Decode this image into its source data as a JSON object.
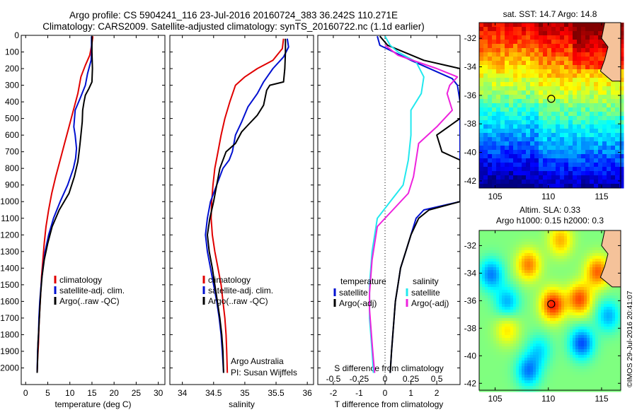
{
  "header": {
    "line1": "Argo profile: CS 5904241_116 23-Jul-2016 20160724_383 36.242S 110.271E",
    "line2": "Climatology: CARS2009. Satellite-adjusted climatology: synTS_20160722.nc (1.1d earlier)"
  },
  "colors": {
    "climatology": "#e00000",
    "satellite": "#0010d0",
    "argo": "#000000",
    "sat_salinity": "#22e8ee",
    "argo_salinity": "#ee22dd"
  },
  "chart_data": [
    {
      "type": "line",
      "name": "temperature",
      "xlabel": "temperature (deg C)",
      "ylabel": "",
      "xlim": [
        -1,
        31.5
      ],
      "ylim": [
        2100,
        0
      ],
      "xticks": [
        "0",
        "5",
        "10",
        "15",
        "20",
        "25",
        "30"
      ],
      "yticks": [
        "0",
        "100",
        "200",
        "300",
        "400",
        "500",
        "600",
        "700",
        "800",
        "900",
        "1000",
        "1100",
        "1200",
        "1300",
        "1400",
        "1500",
        "1600",
        "1700",
        "1800",
        "1900",
        "2000"
      ],
      "legend": [
        "climatology",
        "satellite-adj. clim.",
        "Argo(..raw -QC)"
      ],
      "series": [
        {
          "name": "climatology",
          "color": "#e00000",
          "points": [
            [
              15.2,
              5
            ],
            [
              15.0,
              50
            ],
            [
              14.5,
              120
            ],
            [
              13.5,
              180
            ],
            [
              12.5,
              250
            ],
            [
              11.8,
              350
            ],
            [
              10.8,
              450
            ],
            [
              9.8,
              550
            ],
            [
              8.8,
              650
            ],
            [
              7.8,
              750
            ],
            [
              6.8,
              850
            ],
            [
              5.9,
              950
            ],
            [
              5.2,
              1050
            ],
            [
              4.6,
              1150
            ],
            [
              4.2,
              1250
            ],
            [
              3.9,
              1350
            ],
            [
              3.6,
              1450
            ],
            [
              3.4,
              1550
            ],
            [
              3.2,
              1650
            ],
            [
              3.0,
              1750
            ],
            [
              2.9,
              1850
            ],
            [
              2.7,
              1950
            ],
            [
              2.6,
              2030
            ]
          ]
        },
        {
          "name": "satellite-adj. clim.",
          "color": "#0010d0",
          "points": [
            [
              14.9,
              5
            ],
            [
              14.9,
              100
            ],
            [
              14.8,
              150
            ],
            [
              14.0,
              230
            ],
            [
              13.5,
              300
            ],
            [
              12.3,
              380
            ],
            [
              11.2,
              450
            ],
            [
              10.9,
              550
            ],
            [
              11.2,
              600
            ],
            [
              11.5,
              680
            ],
            [
              11.3,
              740
            ],
            [
              10.8,
              800
            ],
            [
              9.5,
              900
            ],
            [
              7.8,
              1000
            ],
            [
              6.3,
              1100
            ],
            [
              5.2,
              1200
            ],
            [
              4.4,
              1300
            ],
            [
              3.9,
              1400
            ],
            [
              3.5,
              1500
            ],
            [
              3.2,
              1600
            ],
            [
              3.0,
              1700
            ],
            [
              2.9,
              1800
            ],
            [
              2.7,
              1900
            ],
            [
              2.6,
              2030
            ]
          ]
        },
        {
          "name": "Argo(..raw -QC)",
          "color": "#000000",
          "points": [
            [
              15.0,
              5
            ],
            [
              15.0,
              100
            ],
            [
              15.1,
              200
            ],
            [
              15.0,
              280
            ],
            [
              14.3,
              320
            ],
            [
              13.5,
              360
            ],
            [
              13.2,
              400
            ],
            [
              12.9,
              450
            ],
            [
              12.8,
              520
            ],
            [
              12.5,
              600
            ],
            [
              12.3,
              650
            ],
            [
              12.1,
              700
            ],
            [
              11.8,
              760
            ],
            [
              11.0,
              850
            ],
            [
              9.8,
              950
            ],
            [
              7.6,
              1050
            ],
            [
              6.0,
              1150
            ],
            [
              5.0,
              1250
            ],
            [
              4.2,
              1350
            ],
            [
              3.7,
              1450
            ],
            [
              3.4,
              1550
            ],
            [
              3.2,
              1650
            ],
            [
              3.0,
              1750
            ],
            [
              2.8,
              1850
            ],
            [
              2.7,
              1950
            ],
            [
              2.6,
              2030
            ]
          ]
        }
      ]
    },
    {
      "type": "line",
      "name": "salinity",
      "xlabel": "salinity",
      "ylabel": "",
      "xlim": [
        33.8,
        36.1
      ],
      "ylim": [
        2100,
        0
      ],
      "xticks": [
        "34",
        "34.5",
        "35",
        "35.5",
        "36"
      ],
      "legend": [
        "climatology",
        "satellite-adj. clim.",
        "Argo(..raw -QC)"
      ],
      "annotation": [
        "Argo Australia",
        "PI: Susan Wijffels"
      ],
      "series": [
        {
          "name": "climatology",
          "color": "#e00000",
          "points": [
            [
              35.62,
              20
            ],
            [
              35.6,
              80
            ],
            [
              35.45,
              150
            ],
            [
              35.2,
              200
            ],
            [
              35.0,
              250
            ],
            [
              34.85,
              300
            ],
            [
              34.76,
              400
            ],
            [
              34.68,
              500
            ],
            [
              34.62,
              600
            ],
            [
              34.57,
              700
            ],
            [
              34.52,
              800
            ],
            [
              34.49,
              900
            ],
            [
              34.47,
              1000
            ],
            [
              34.46,
              1100
            ],
            [
              34.48,
              1200
            ],
            [
              34.52,
              1300
            ],
            [
              34.57,
              1400
            ],
            [
              34.62,
              1500
            ],
            [
              34.65,
              1600
            ],
            [
              34.68,
              1700
            ],
            [
              34.7,
              1800
            ],
            [
              34.71,
              1900
            ],
            [
              34.72,
              2030
            ]
          ]
        },
        {
          "name": "satellite-adj. clim.",
          "color": "#0010d0",
          "points": [
            [
              35.68,
              20
            ],
            [
              35.7,
              70
            ],
            [
              35.62,
              130
            ],
            [
              35.45,
              200
            ],
            [
              35.3,
              280
            ],
            [
              35.2,
              350
            ],
            [
              35.05,
              430
            ],
            [
              34.95,
              520
            ],
            [
              34.85,
              600
            ],
            [
              34.8,
              700
            ],
            [
              34.75,
              750
            ],
            [
              34.65,
              800
            ],
            [
              34.55,
              900
            ],
            [
              34.45,
              1000
            ],
            [
              34.4,
              1100
            ],
            [
              34.37,
              1200
            ],
            [
              34.4,
              1300
            ],
            [
              34.45,
              1400
            ],
            [
              34.5,
              1500
            ],
            [
              34.55,
              1600
            ],
            [
              34.59,
              1700
            ],
            [
              34.62,
              1800
            ],
            [
              34.64,
              1900
            ],
            [
              34.66,
              2030
            ]
          ]
        },
        {
          "name": "Argo(..raw -QC)",
          "color": "#000000",
          "points": [
            [
              35.65,
              20
            ],
            [
              35.65,
              100
            ],
            [
              35.64,
              200
            ],
            [
              35.62,
              280
            ],
            [
              35.4,
              300
            ],
            [
              35.35,
              330
            ],
            [
              35.3,
              420
            ],
            [
              35.2,
              480
            ],
            [
              35.05,
              540
            ],
            [
              34.95,
              580
            ],
            [
              34.85,
              650
            ],
            [
              34.7,
              700
            ],
            [
              34.6,
              800
            ],
            [
              34.55,
              900
            ],
            [
              34.5,
              1000
            ],
            [
              34.44,
              1100
            ],
            [
              34.4,
              1200
            ],
            [
              34.43,
              1300
            ],
            [
              34.48,
              1400
            ],
            [
              34.52,
              1500
            ],
            [
              34.56,
              1600
            ],
            [
              34.6,
              1700
            ],
            [
              34.63,
              1800
            ],
            [
              34.65,
              1900
            ],
            [
              34.66,
              2030
            ]
          ]
        }
      ]
    },
    {
      "type": "line",
      "name": "differences",
      "xlabel": "T difference from climatology",
      "xlabel_top": "S difference from climatology",
      "xlim": [
        -2.6,
        2.9
      ],
      "ylim": [
        2100,
        0
      ],
      "xticks_T": [
        "-2",
        "-1",
        "0",
        "1",
        "2"
      ],
      "xticks_S": [
        "-0.5",
        "-0.25",
        "0",
        "0.25",
        "0.5"
      ],
      "legend_title_T": "temperature",
      "legend_title_S": "salinity",
      "legend": [
        "satellite",
        "Argo(-adj)",
        "satellite",
        "Argo(-adj)"
      ],
      "series": [
        {
          "name": "satellite",
          "color": "#0010d0",
          "points": [
            [
              -0.3,
              5
            ],
            [
              -0.2,
              60
            ],
            [
              1.0,
              150
            ],
            [
              2.6,
              260
            ],
            [
              2.8,
              300
            ],
            [
              2.9,
              400
            ],
            [
              2.9,
              900
            ],
            [
              2.9,
              1000
            ],
            [
              1.5,
              1050
            ],
            [
              1.2,
              1100
            ],
            [
              1.0,
              1200
            ],
            [
              0.8,
              1300
            ],
            [
              0.6,
              1400
            ],
            [
              0.5,
              1500
            ],
            [
              0.4,
              1600
            ],
            [
              0.35,
              1700
            ],
            [
              0.3,
              1800
            ],
            [
              0.25,
              1900
            ],
            [
              0.2,
              2030
            ]
          ]
        },
        {
          "name": "Argo(-adj)",
          "color": "#000000",
          "points": [
            [
              -0.2,
              5
            ],
            [
              0.1,
              60
            ],
            [
              1.5,
              150
            ],
            [
              2.9,
              200
            ],
            [
              2.9,
              500
            ],
            [
              2.0,
              600
            ],
            [
              2.2,
              700
            ],
            [
              2.9,
              750
            ],
            [
              2.9,
              1000
            ],
            [
              1.7,
              1050
            ],
            [
              1.3,
              1100
            ],
            [
              1.0,
              1200
            ],
            [
              0.8,
              1300
            ],
            [
              0.6,
              1400
            ],
            [
              0.5,
              1500
            ],
            [
              0.4,
              1600
            ],
            [
              0.35,
              1700
            ],
            [
              0.3,
              1800
            ],
            [
              0.25,
              1900
            ],
            [
              0.2,
              2030
            ]
          ]
        },
        {
          "name": "satellite",
          "color": "#22e8ee",
          "points": [
            [
              0.0,
              5
            ],
            [
              0.2,
              60
            ],
            [
              0.5,
              100
            ],
            [
              1.2,
              160
            ],
            [
              1.5,
              250
            ],
            [
              1.4,
              350
            ],
            [
              1.0,
              450
            ],
            [
              1.0,
              600
            ],
            [
              0.9,
              750
            ],
            [
              0.7,
              900
            ],
            [
              0.2,
              1000
            ],
            [
              -0.3,
              1100
            ],
            [
              -0.4,
              1200
            ],
            [
              -0.5,
              1300
            ],
            [
              -0.55,
              1400
            ],
            [
              -0.6,
              1500
            ],
            [
              -0.6,
              1600
            ],
            [
              -0.6,
              1700
            ],
            [
              -0.55,
              1800
            ],
            [
              -0.5,
              1900
            ],
            [
              -0.45,
              2030
            ]
          ]
        },
        {
          "name": "Argo(-adj)",
          "color": "#ee22dd",
          "points": [
            [
              0.0,
              60
            ],
            [
              0.5,
              120
            ],
            [
              2.0,
              200
            ],
            [
              2.8,
              250
            ],
            [
              2.5,
              300
            ],
            [
              2.4,
              350
            ],
            [
              2.6,
              450
            ],
            [
              2.0,
              550
            ],
            [
              1.3,
              650
            ],
            [
              1.2,
              750
            ],
            [
              1.1,
              850
            ],
            [
              0.9,
              950
            ],
            [
              0.3,
              1050
            ],
            [
              -0.3,
              1150
            ],
            [
              -0.4,
              1250
            ],
            [
              -0.5,
              1350
            ],
            [
              -0.55,
              1450
            ],
            [
              -0.6,
              1550
            ],
            [
              -0.6,
              1650
            ],
            [
              -0.55,
              1750
            ],
            [
              -0.5,
              1850
            ],
            [
              -0.45,
              1950
            ],
            [
              -0.4,
              2030
            ]
          ]
        }
      ]
    },
    {
      "type": "heatmap",
      "name": "sst_map",
      "title": "sat. SST: 14.7 Argo: 14.8",
      "xlim": [
        103.5,
        116.8
      ],
      "ylim": [
        -42.5,
        -30.9
      ],
      "xticks": [
        "105",
        "110",
        "115"
      ],
      "yticks": [
        "-32",
        "-34",
        "-36",
        "-38",
        "-40",
        "-42"
      ],
      "float_position": [
        110.271,
        -36.242
      ]
    },
    {
      "type": "heatmap",
      "name": "sla_map",
      "title_line1": "Altim. SLA: 0.33",
      "title_line2": "Argo h1000: 0.15 h2000: 0.3",
      "xlim": [
        103.5,
        116.8
      ],
      "ylim": [
        -42.5,
        -30.9
      ],
      "xticks": [
        "105",
        "110",
        "115"
      ],
      "yticks": [
        "-32",
        "-34",
        "-36",
        "-38",
        "-40",
        "-42"
      ],
      "float_position": [
        110.271,
        -36.242
      ]
    }
  ],
  "footer": {
    "credit": "©IMOS 29-Jul-2016 20:41:07"
  }
}
